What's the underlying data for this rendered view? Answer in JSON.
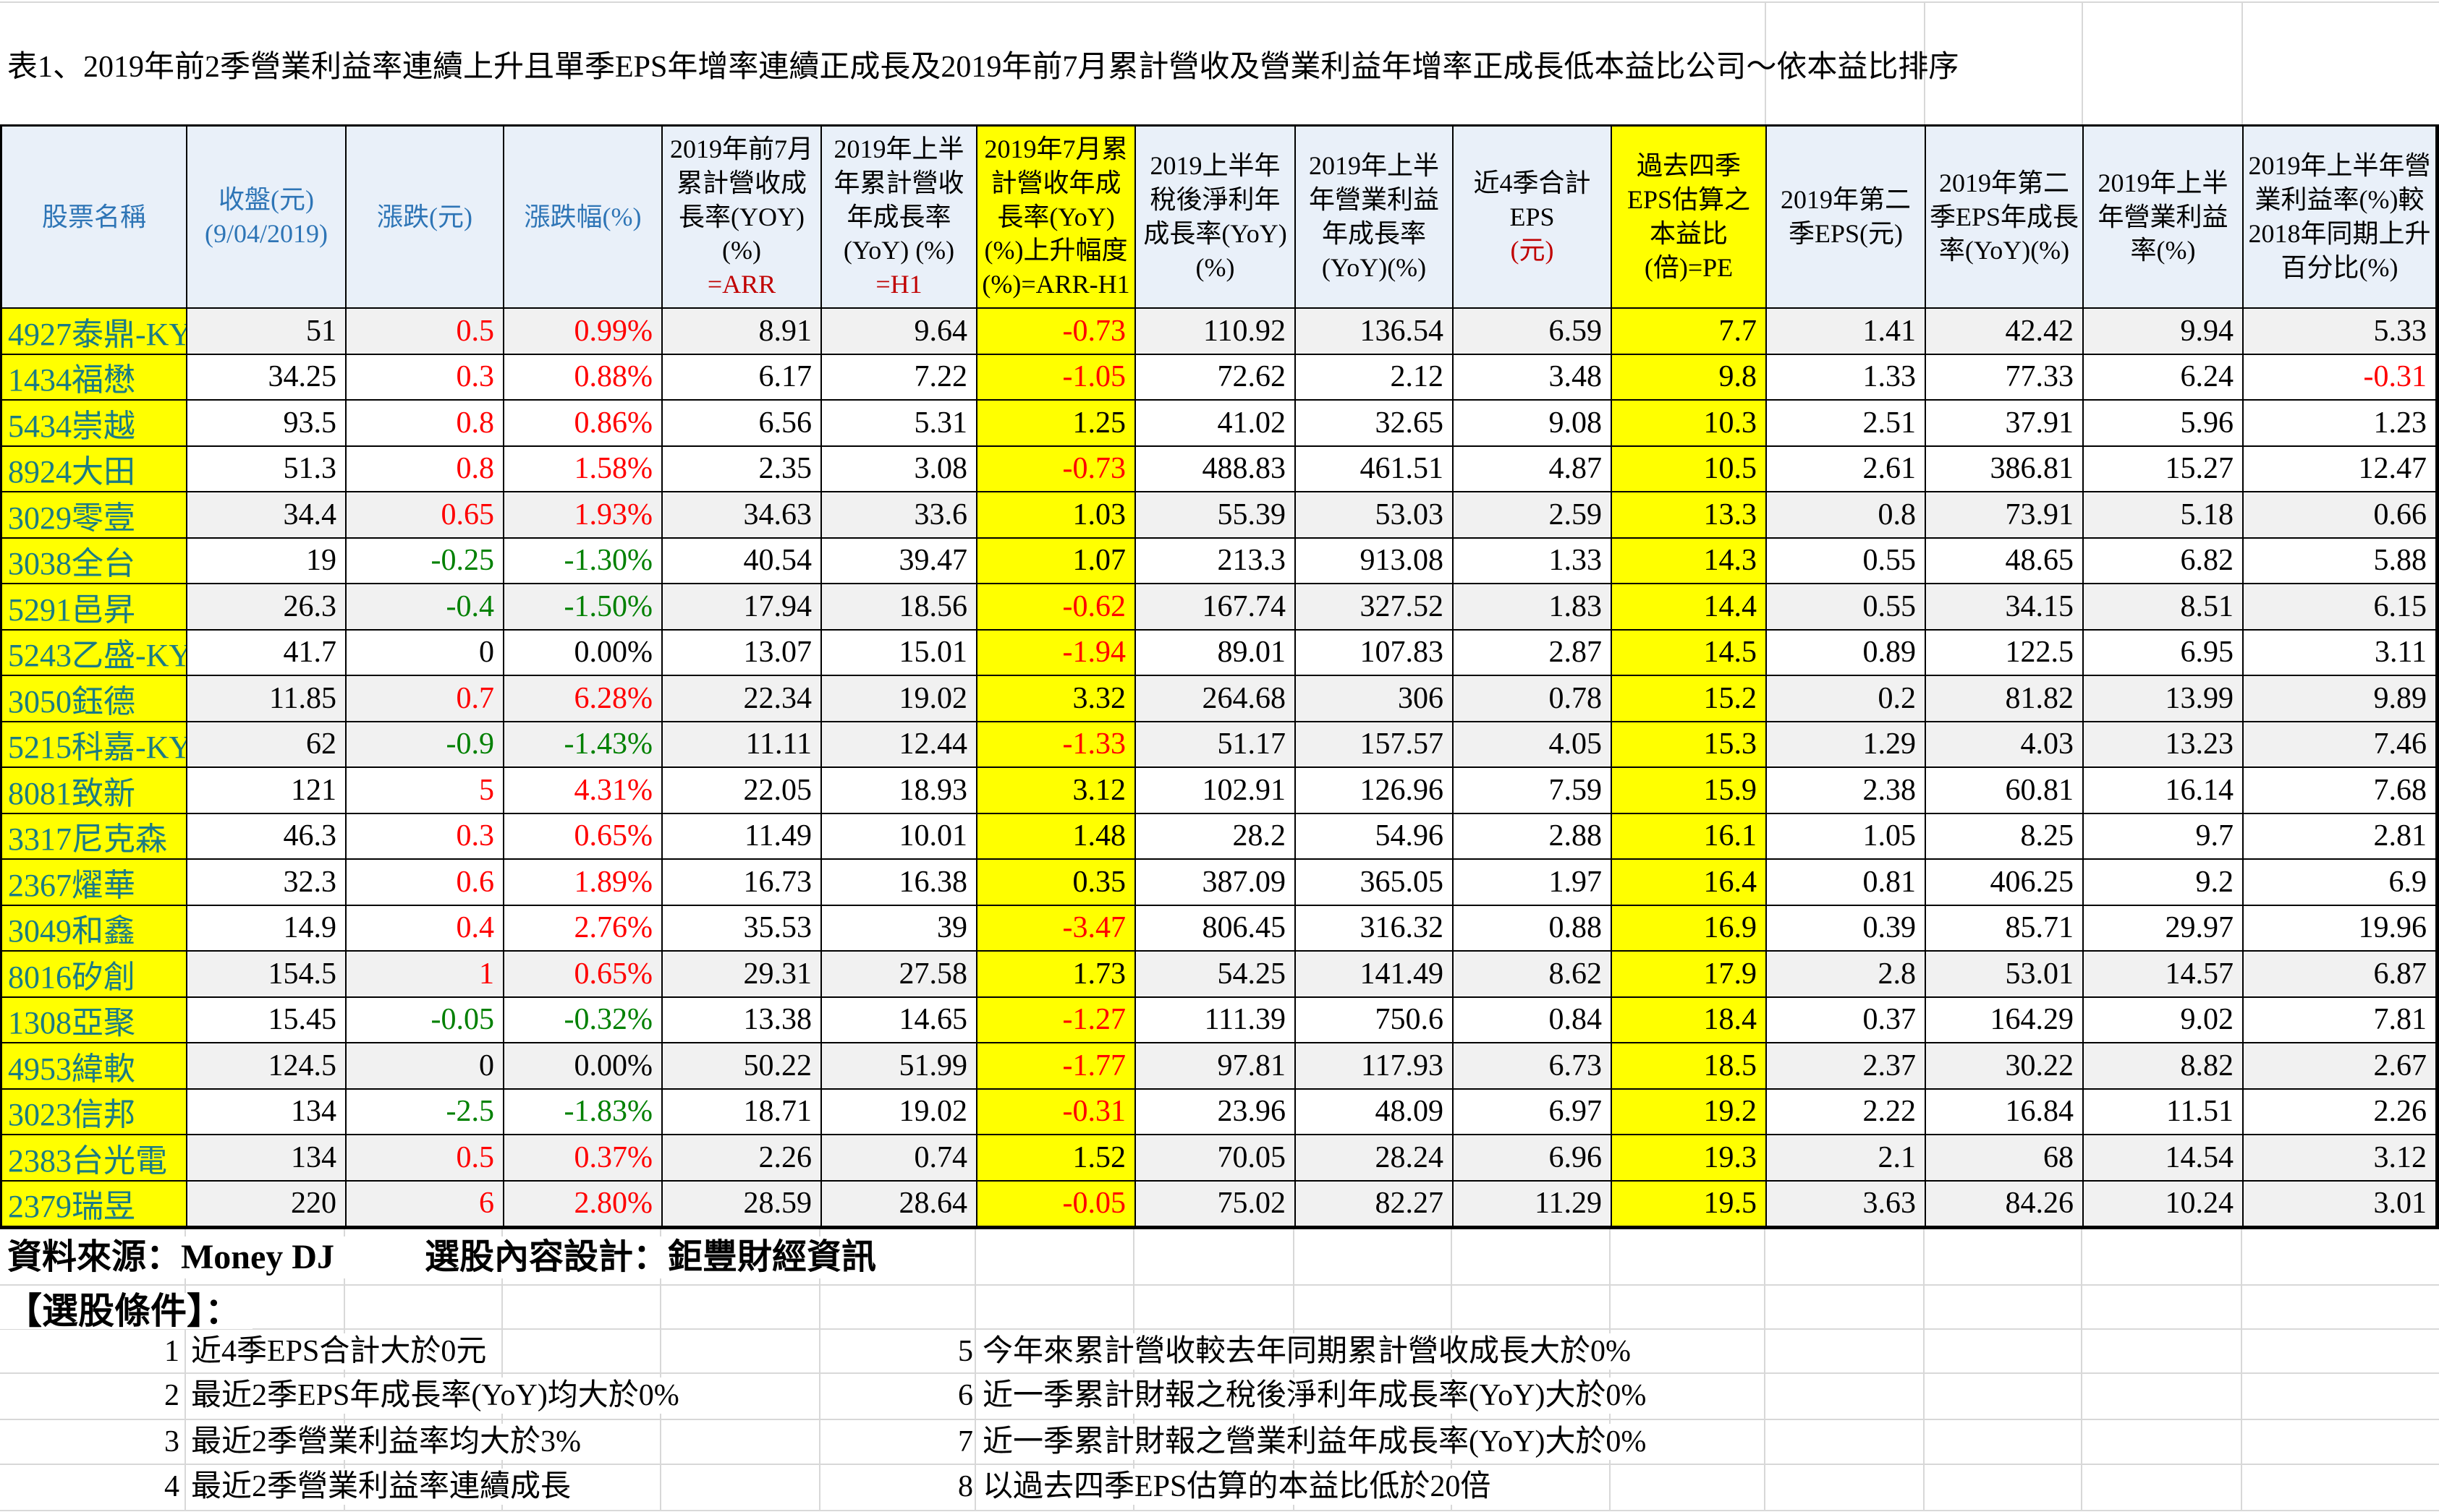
{
  "title": "表1、2019年前2季營業利益率連續上升且單季EPS年增率連續正成長及2019年前7月累計營收及營業利益年增率正成長低本益比公司～依本益比排序",
  "colors": {
    "header_bg": "#e9f0f9",
    "header_blue": "#2e75b6",
    "stock_name_teal": "#1b7b84",
    "highlight_yellow": "#ffff00",
    "up_red": "#ff0000",
    "down_green": "#008000",
    "formula_darkred": "#c00000",
    "shaded_row_grey": "#f1f1f1"
  },
  "table": {
    "columns": [
      {
        "id": "stock-name",
        "color": "blue",
        "lines": [
          {
            "t": "股票名稱"
          }
        ]
      },
      {
        "id": "close",
        "color": "blue",
        "lines": [
          {
            "t": "收盤(元)"
          },
          {
            "t": "(9/04/2019)"
          }
        ]
      },
      {
        "id": "change",
        "color": "blue",
        "lines": [
          {
            "t": "漲跌(元)"
          }
        ]
      },
      {
        "id": "change-pct",
        "color": "blue",
        "lines": [
          {
            "t": "漲跌幅(%)"
          }
        ]
      },
      {
        "id": "rev-growth-7m",
        "color": "black",
        "lines": [
          {
            "t": "2019年前7月累計營收成長率(YOY)(%)"
          },
          {
            "t": "=ARR",
            "red": true
          }
        ]
      },
      {
        "id": "rev-growth-h1",
        "color": "black",
        "lines": [
          {
            "t": "2019年上半年累計營收年成長率(YoY) (%)"
          },
          {
            "t": "=H1",
            "red": true
          }
        ]
      },
      {
        "id": "rev-growth-diff",
        "color": "black",
        "yellow": true,
        "lines": [
          {
            "t": "2019年7月累計營收年成長率(YoY) (%)上升幅度"
          },
          {
            "t": "(%)=ARR-H1"
          }
        ]
      },
      {
        "id": "net-income-growth",
        "color": "black",
        "lines": [
          {
            "t": "2019上半年稅後淨利年成長率(YoY)(%)"
          }
        ]
      },
      {
        "id": "op-income-growth",
        "color": "black",
        "lines": [
          {
            "t": "2019年上半年營業利益年成長率(YoY)(%)"
          }
        ]
      },
      {
        "id": "eps-4q",
        "color": "black",
        "lines": [
          {
            "t": "近4季合計EPS"
          },
          {
            "t": "(元)",
            "red": true
          }
        ]
      },
      {
        "id": "pe",
        "color": "black",
        "yellow": true,
        "lines": [
          {
            "t": "過去四季EPS估算之本益比(倍)=PE"
          }
        ]
      },
      {
        "id": "q2-eps",
        "color": "black",
        "lines": [
          {
            "t": "2019年第二季EPS(元)"
          }
        ]
      },
      {
        "id": "q2-eps-growth",
        "color": "black",
        "lines": [
          {
            "t": "2019年第二季EPS年成長率(YoY)(%)"
          }
        ]
      },
      {
        "id": "op-margin",
        "color": "black",
        "lines": [
          {
            "t": "2019年上半年營業利益率(%)"
          }
        ]
      },
      {
        "id": "op-margin-delta",
        "color": "black",
        "lines": [
          {
            "t": "2019年上半年營業利益率(%)較2018年同期上升百分比(%)"
          }
        ]
      }
    ],
    "rows": [
      {
        "name": "4927泰鼎-KY",
        "shaded": true,
        "values": [
          "51",
          "0.5",
          "0.99%",
          "8.91",
          "9.64",
          "-0.73",
          "110.92",
          "136.54",
          "6.59",
          "7.7",
          "1.41",
          "42.42",
          "9.94",
          "5.33"
        ]
      },
      {
        "name": "1434福懋",
        "shaded": false,
        "values": [
          "34.25",
          "0.3",
          "0.88%",
          "6.17",
          "7.22",
          "-1.05",
          "72.62",
          "2.12",
          "3.48",
          "9.8",
          "1.33",
          "77.33",
          "6.24",
          "-0.31"
        ]
      },
      {
        "name": "5434崇越",
        "shaded": false,
        "values": [
          "93.5",
          "0.8",
          "0.86%",
          "6.56",
          "5.31",
          "1.25",
          "41.02",
          "32.65",
          "9.08",
          "10.3",
          "2.51",
          "37.91",
          "5.96",
          "1.23"
        ]
      },
      {
        "name": "8924大田",
        "shaded": false,
        "values": [
          "51.3",
          "0.8",
          "1.58%",
          "2.35",
          "3.08",
          "-0.73",
          "488.83",
          "461.51",
          "4.87",
          "10.5",
          "2.61",
          "386.81",
          "15.27",
          "12.47"
        ]
      },
      {
        "name": "3029零壹",
        "shaded": true,
        "values": [
          "34.4",
          "0.65",
          "1.93%",
          "34.63",
          "33.6",
          "1.03",
          "55.39",
          "53.03",
          "2.59",
          "13.3",
          "0.8",
          "73.91",
          "5.18",
          "0.66"
        ]
      },
      {
        "name": "3038全台",
        "shaded": false,
        "values": [
          "19",
          "-0.25",
          "-1.30%",
          "40.54",
          "39.47",
          "1.07",
          "213.3",
          "913.08",
          "1.33",
          "14.3",
          "0.55",
          "48.65",
          "6.82",
          "5.88"
        ]
      },
      {
        "name": "5291邑昇",
        "shaded": true,
        "values": [
          "26.3",
          "-0.4",
          "-1.50%",
          "17.94",
          "18.56",
          "-0.62",
          "167.74",
          "327.52",
          "1.83",
          "14.4",
          "0.55",
          "34.15",
          "8.51",
          "6.15"
        ]
      },
      {
        "name": "5243乙盛-KY",
        "shaded": false,
        "values": [
          "41.7",
          "0",
          "0.00%",
          "13.07",
          "15.01",
          "-1.94",
          "89.01",
          "107.83",
          "2.87",
          "14.5",
          "0.89",
          "122.5",
          "6.95",
          "3.11"
        ]
      },
      {
        "name": "3050鈺德",
        "shaded": true,
        "values": [
          "11.85",
          "0.7",
          "6.28%",
          "22.34",
          "19.02",
          "3.32",
          "264.68",
          "306",
          "0.78",
          "15.2",
          "0.2",
          "81.82",
          "13.99",
          "9.89"
        ]
      },
      {
        "name": "5215科嘉-KY",
        "shaded": true,
        "values": [
          "62",
          "-0.9",
          "-1.43%",
          "11.11",
          "12.44",
          "-1.33",
          "51.17",
          "157.57",
          "4.05",
          "15.3",
          "1.29",
          "4.03",
          "13.23",
          "7.46"
        ]
      },
      {
        "name": "8081致新",
        "shaded": false,
        "values": [
          "121",
          "5",
          "4.31%",
          "22.05",
          "18.93",
          "3.12",
          "102.91",
          "126.96",
          "7.59",
          "15.9",
          "2.38",
          "60.81",
          "16.14",
          "7.68"
        ]
      },
      {
        "name": "3317尼克森",
        "shaded": false,
        "values": [
          "46.3",
          "0.3",
          "0.65%",
          "11.49",
          "10.01",
          "1.48",
          "28.2",
          "54.96",
          "2.88",
          "16.1",
          "1.05",
          "8.25",
          "9.7",
          "2.81"
        ]
      },
      {
        "name": "2367燿華",
        "shaded": false,
        "values": [
          "32.3",
          "0.6",
          "1.89%",
          "16.73",
          "16.38",
          "0.35",
          "387.09",
          "365.05",
          "1.97",
          "16.4",
          "0.81",
          "406.25",
          "9.2",
          "6.9"
        ]
      },
      {
        "name": "3049和鑫",
        "shaded": false,
        "values": [
          "14.9",
          "0.4",
          "2.76%",
          "35.53",
          "39",
          "-3.47",
          "806.45",
          "316.32",
          "0.88",
          "16.9",
          "0.39",
          "85.71",
          "29.97",
          "19.96"
        ]
      },
      {
        "name": "8016矽創",
        "shaded": true,
        "values": [
          "154.5",
          "1",
          "0.65%",
          "29.31",
          "27.58",
          "1.73",
          "54.25",
          "141.49",
          "8.62",
          "17.9",
          "2.8",
          "53.01",
          "14.57",
          "6.87"
        ]
      },
      {
        "name": "1308亞聚",
        "shaded": false,
        "values": [
          "15.45",
          "-0.05",
          "-0.32%",
          "13.38",
          "14.65",
          "-1.27",
          "111.39",
          "750.6",
          "0.84",
          "18.4",
          "0.37",
          "164.29",
          "9.02",
          "7.81"
        ]
      },
      {
        "name": "4953緯軟",
        "shaded": true,
        "values": [
          "124.5",
          "0",
          "0.00%",
          "50.22",
          "51.99",
          "-1.77",
          "97.81",
          "117.93",
          "6.73",
          "18.5",
          "2.37",
          "30.22",
          "8.82",
          "2.67"
        ]
      },
      {
        "name": "3023信邦",
        "shaded": false,
        "values": [
          "134",
          "-2.5",
          "-1.83%",
          "18.71",
          "19.02",
          "-0.31",
          "23.96",
          "48.09",
          "6.97",
          "19.2",
          "2.22",
          "16.84",
          "11.51",
          "2.26"
        ]
      },
      {
        "name": "2383台光電",
        "shaded": true,
        "values": [
          "134",
          "0.5",
          "0.37%",
          "2.26",
          "0.74",
          "1.52",
          "70.05",
          "28.24",
          "6.96",
          "19.3",
          "2.1",
          "68",
          "14.54",
          "3.12"
        ]
      },
      {
        "name": "2379瑞昱",
        "shaded": true,
        "values": [
          "220",
          "6",
          "2.80%",
          "28.59",
          "28.64",
          "-0.05",
          "75.02",
          "82.27",
          "11.29",
          "19.5",
          "3.63",
          "84.26",
          "10.24",
          "3.01"
        ]
      }
    ]
  },
  "footer": {
    "source": "資料來源：Money DJ",
    "design": "選股內容設計：鉅豐財經資訊",
    "conditions_title": "【選股條件】：",
    "conditions_left": [
      {
        "num": "1",
        "text": "近4季EPS合計大於0元"
      },
      {
        "num": "2",
        "text": "最近2季EPS年成長率(YoY)均大於0%"
      },
      {
        "num": "3",
        "text": "最近2季營業利益率均大於3%"
      },
      {
        "num": "4",
        "text": "最近2季營業利益率連續成長"
      }
    ],
    "conditions_right": [
      {
        "num": "5",
        "text": "今年來累計營收較去年同期累計營收成長大於0%"
      },
      {
        "num": "6",
        "text": "近一季累計財報之稅後淨利年成長率(YoY)大於0%"
      },
      {
        "num": "7",
        "text": "近一季累計財報之營業利益年成長率(YoY)大於0%"
      },
      {
        "num": "8",
        "text": "以過去四季EPS估算的本益比低於20倍"
      }
    ]
  }
}
